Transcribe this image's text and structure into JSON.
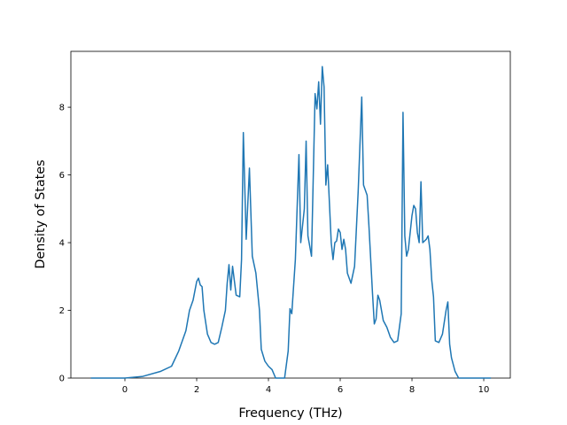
{
  "chart_data": {
    "type": "line",
    "xlabel": "Frequency (THz)",
    "ylabel": "Density of States",
    "color": "#1f77b4",
    "x": [
      -0.95,
      0,
      0.5,
      1,
      1.3,
      1.5,
      1.7,
      1.8,
      1.9,
      2.0,
      2.05,
      2.1,
      2.15,
      2.2,
      2.3,
      2.4,
      2.5,
      2.6,
      2.7,
      2.8,
      2.85,
      2.9,
      2.95,
      3.0,
      3.1,
      3.2,
      3.25,
      3.3,
      3.38,
      3.47,
      3.55,
      3.65,
      3.75,
      3.8,
      3.9,
      4.0,
      4.1,
      4.2,
      4.45,
      4.55,
      4.6,
      4.65,
      4.75,
      4.85,
      4.9,
      5.0,
      5.05,
      5.1,
      5.2,
      5.25,
      5.3,
      5.35,
      5.4,
      5.45,
      5.5,
      5.55,
      5.6,
      5.65,
      5.75,
      5.8,
      5.85,
      5.9,
      5.95,
      6.0,
      6.05,
      6.1,
      6.15,
      6.2,
      6.3,
      6.4,
      6.5,
      6.6,
      6.65,
      6.75,
      6.8,
      6.9,
      6.95,
      7.0,
      7.05,
      7.1,
      7.2,
      7.3,
      7.4,
      7.5,
      7.6,
      7.7,
      7.75,
      7.8,
      7.85,
      7.9,
      8.0,
      8.05,
      8.1,
      8.15,
      8.2,
      8.25,
      8.3,
      8.4,
      8.45,
      8.5,
      8.55,
      8.6,
      8.65,
      8.75,
      8.85,
      8.95,
      9.0,
      9.05,
      9.1,
      9.2,
      9.3,
      10.2
    ],
    "values": [
      0,
      0,
      0.05,
      0.2,
      0.35,
      0.8,
      1.4,
      2.0,
      2.3,
      2.85,
      2.95,
      2.75,
      2.7,
      2.0,
      1.3,
      1.05,
      1.0,
      1.05,
      1.5,
      2.0,
      2.8,
      3.35,
      2.6,
      3.3,
      2.45,
      2.4,
      3.5,
      7.25,
      4.1,
      6.2,
      3.6,
      3.1,
      2.0,
      0.85,
      0.5,
      0.35,
      0.25,
      0,
      0,
      0.8,
      2.05,
      1.9,
      3.5,
      6.6,
      4.0,
      5.0,
      7.0,
      4.2,
      3.6,
      6.0,
      8.4,
      7.95,
      8.75,
      7.5,
      9.2,
      8.6,
      5.7,
      6.3,
      4.0,
      3.5,
      4.0,
      4.05,
      4.4,
      4.3,
      3.8,
      4.1,
      3.8,
      3.1,
      2.8,
      3.3,
      5.5,
      8.3,
      5.7,
      5.4,
      4.5,
      2.5,
      1.6,
      1.75,
      2.45,
      2.3,
      1.7,
      1.5,
      1.2,
      1.05,
      1.1,
      1.9,
      7.85,
      4.2,
      3.6,
      3.8,
      4.8,
      5.1,
      5.0,
      4.3,
      4.0,
      5.8,
      4.0,
      4.1,
      4.2,
      3.8,
      2.9,
      2.4,
      1.1,
      1.05,
      1.3,
      2.0,
      2.25,
      1.0,
      0.6,
      0.2,
      0,
      0
    ],
    "xlim": [
      -1.506,
      10.74
    ],
    "ylim": [
      0,
      9.65
    ],
    "xticks": [
      0,
      2,
      4,
      6,
      8,
      10
    ],
    "yticks": [
      0,
      2,
      4,
      6,
      8
    ]
  }
}
